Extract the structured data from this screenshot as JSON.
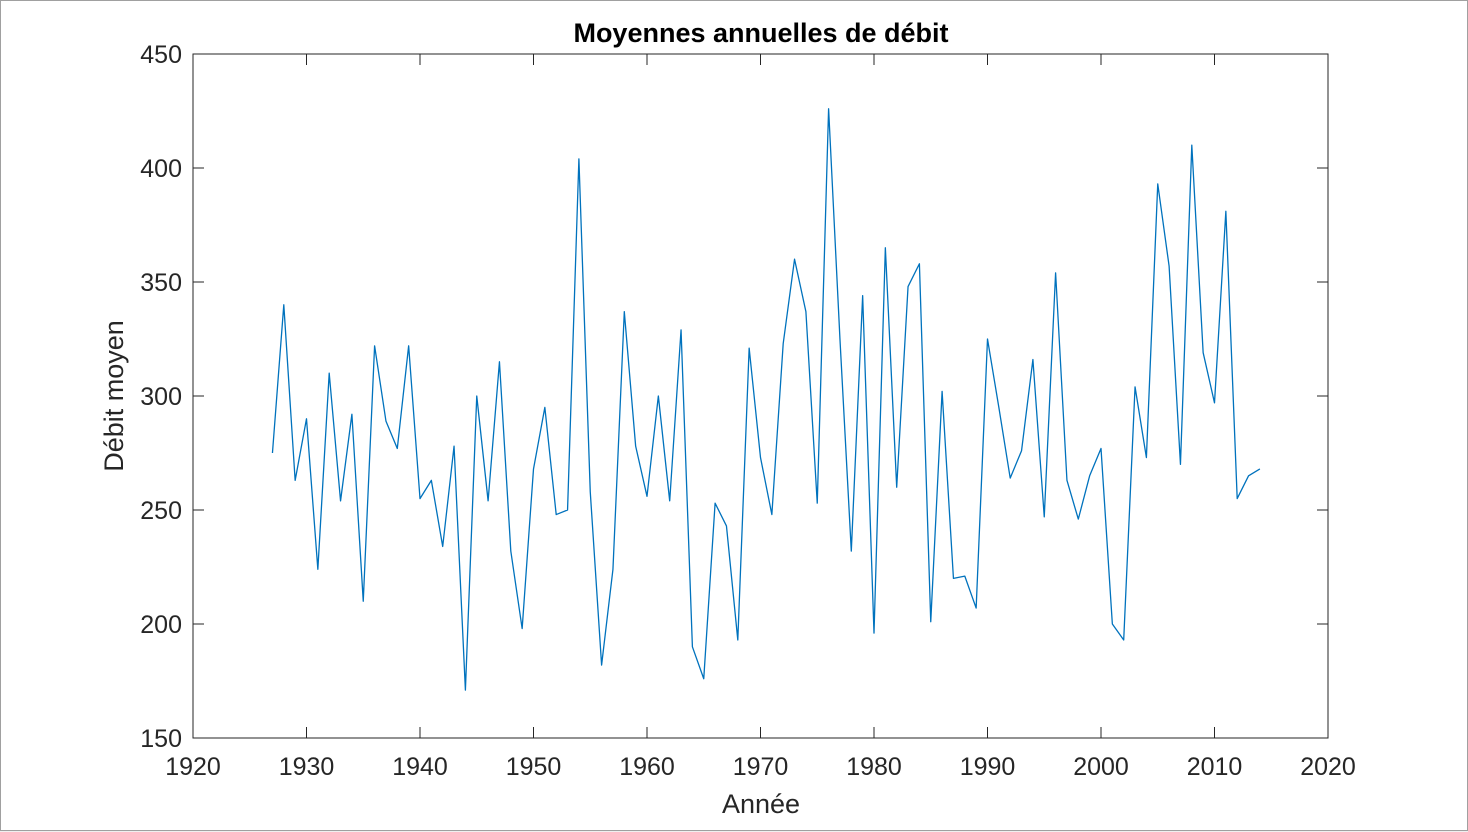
{
  "chart_data": {
    "type": "line",
    "title": "Moyennes annuelles de débit",
    "xlabel": "Année",
    "ylabel": "Débit moyen",
    "xlim": [
      1920,
      2020
    ],
    "ylim": [
      150,
      450
    ],
    "xticks": [
      1920,
      1930,
      1940,
      1950,
      1960,
      1970,
      1980,
      1990,
      2000,
      2010,
      2020
    ],
    "yticks": [
      150,
      200,
      250,
      300,
      350,
      400,
      450
    ],
    "grid": false,
    "line_color": "#0072bd",
    "axis_color": "#262626",
    "series": [
      {
        "x": [
          1927,
          1928,
          1929,
          1930,
          1931,
          1932,
          1933,
          1934,
          1935,
          1936,
          1937,
          1938,
          1939,
          1940,
          1941,
          1942,
          1943,
          1944,
          1945,
          1946,
          1947,
          1948,
          1949,
          1950,
          1951,
          1952,
          1953,
          1954,
          1955,
          1956,
          1957,
          1958,
          1959,
          1960,
          1961,
          1962,
          1963,
          1964,
          1965,
          1966,
          1967,
          1968,
          1969,
          1970,
          1971,
          1972,
          1973,
          1974,
          1975,
          1976,
          1977,
          1978,
          1979,
          1980,
          1981,
          1982,
          1983,
          1984,
          1985,
          1986,
          1987,
          1988,
          1989,
          1990,
          1991,
          1992,
          1993,
          1994,
          1995,
          1996,
          1997,
          1998,
          1999,
          2000,
          2001,
          2002,
          2003,
          2004,
          2005,
          2006,
          2007,
          2008,
          2009,
          2010,
          2011,
          2012,
          2013,
          2014
        ],
        "values": [
          275,
          340,
          263,
          290,
          224,
          310,
          254,
          292,
          210,
          322,
          289,
          277,
          322,
          255,
          263,
          234,
          278,
          171,
          300,
          254,
          315,
          232,
          198,
          268,
          295,
          248,
          250,
          404,
          258,
          182,
          224,
          337,
          278,
          256,
          300,
          254,
          329,
          190,
          176,
          253,
          243,
          193,
          321,
          273,
          248,
          323,
          360,
          337,
          253,
          426,
          325,
          232,
          344,
          196,
          365,
          260,
          348,
          358,
          201,
          302,
          220,
          221,
          207,
          325,
          295,
          264,
          276,
          316,
          247,
          354,
          263,
          246,
          265,
          277,
          200,
          193,
          304,
          273,
          393,
          357,
          270,
          410,
          319,
          297,
          381,
          255,
          265,
          268
        ]
      }
    ]
  }
}
